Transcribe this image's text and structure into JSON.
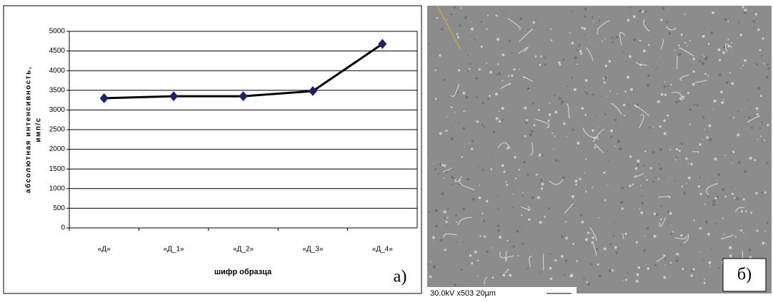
{
  "chart_data": {
    "type": "line",
    "y_label": [
      "абсолютная интенсивность,",
      "имп/с"
    ],
    "x_label": "шифр образца",
    "categories": [
      "«Д»",
      "«Д_1»",
      "«Д_2»",
      "«Д_3»",
      "«Д_4»"
    ],
    "values": [
      3300,
      3350,
      3350,
      3480,
      4680
    ],
    "color": "#000000",
    "marker_color": "#1f1f6b",
    "ylim": [
      0,
      5000
    ],
    "yticks": [
      0,
      500,
      1000,
      1500,
      2000,
      2500,
      3000,
      3500,
      4000,
      4500,
      5000
    ],
    "grid": true
  },
  "labels": {
    "a": "а)",
    "b": "б)",
    "sem_caption": "30.0kV  x503  20µm"
  }
}
